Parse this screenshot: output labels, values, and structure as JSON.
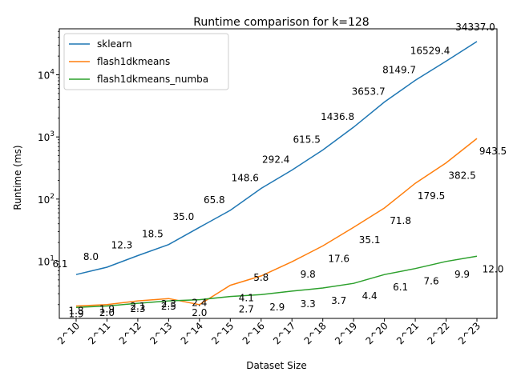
{
  "chart_data": {
    "type": "line",
    "title": "Runtime comparison for k=128",
    "xlabel": "Dataset Size",
    "ylabel": "Runtime (ms)",
    "yscale": "log",
    "ylim": [
      1.2,
      55000
    ],
    "grid": false,
    "legend_position": "top-left",
    "categories": [
      "2^10",
      "2^11",
      "2^12",
      "2^13",
      "2^14",
      "2^15",
      "2^16",
      "2^17",
      "2^18",
      "2^19",
      "2^20",
      "2^21",
      "2^22",
      "2^23"
    ],
    "y_ticks": [
      {
        "value": 10,
        "base": "10",
        "exp": "1"
      },
      {
        "value": 100,
        "base": "10",
        "exp": "2"
      },
      {
        "value": 1000,
        "base": "10",
        "exp": "3"
      },
      {
        "value": 10000,
        "base": "10",
        "exp": "4"
      }
    ],
    "series": [
      {
        "name": "sklearn",
        "color": "#1f77b4",
        "values": [
          6.1,
          8.0,
          12.3,
          18.5,
          35.0,
          65.8,
          148.6,
          292.4,
          615.5,
          1436.8,
          3653.7,
          8149.7,
          16529.4,
          34337.0
        ],
        "labels": [
          "6.1",
          "8.0",
          "12.3",
          "18.5",
          "35.0",
          "65.8",
          "148.6",
          "292.4",
          "615.5",
          "1436.8",
          "3653.7",
          "8149.7",
          "16529.4",
          "34337.0"
        ]
      },
      {
        "name": "flash1dkmeans",
        "color": "#ff7f0e",
        "values": [
          1.9,
          2.0,
          2.3,
          2.5,
          2.0,
          4.1,
          5.8,
          9.8,
          17.6,
          35.1,
          71.8,
          179.5,
          382.5,
          943.5
        ],
        "labels": [
          "1.9",
          "2.0",
          "2.3",
          "2.5",
          "2.0",
          "4.1",
          "5.8",
          "9.8",
          "17.6",
          "35.1",
          "71.8",
          "179.5",
          "382.5",
          "943.5"
        ]
      },
      {
        "name": "flash1dkmeans_numba",
        "color": "#2ca02c",
        "values": [
          1.8,
          1.9,
          2.1,
          2.3,
          2.4,
          2.7,
          2.9,
          3.3,
          3.7,
          4.4,
          6.1,
          7.6,
          9.9,
          12.0
        ],
        "labels": [
          "1.8",
          "1.9",
          "2.1",
          "2.3",
          "2.4",
          "2.7",
          "2.9",
          "3.3",
          "3.7",
          "4.4",
          "6.1",
          "7.6",
          "9.9",
          "12.0"
        ]
      }
    ]
  }
}
